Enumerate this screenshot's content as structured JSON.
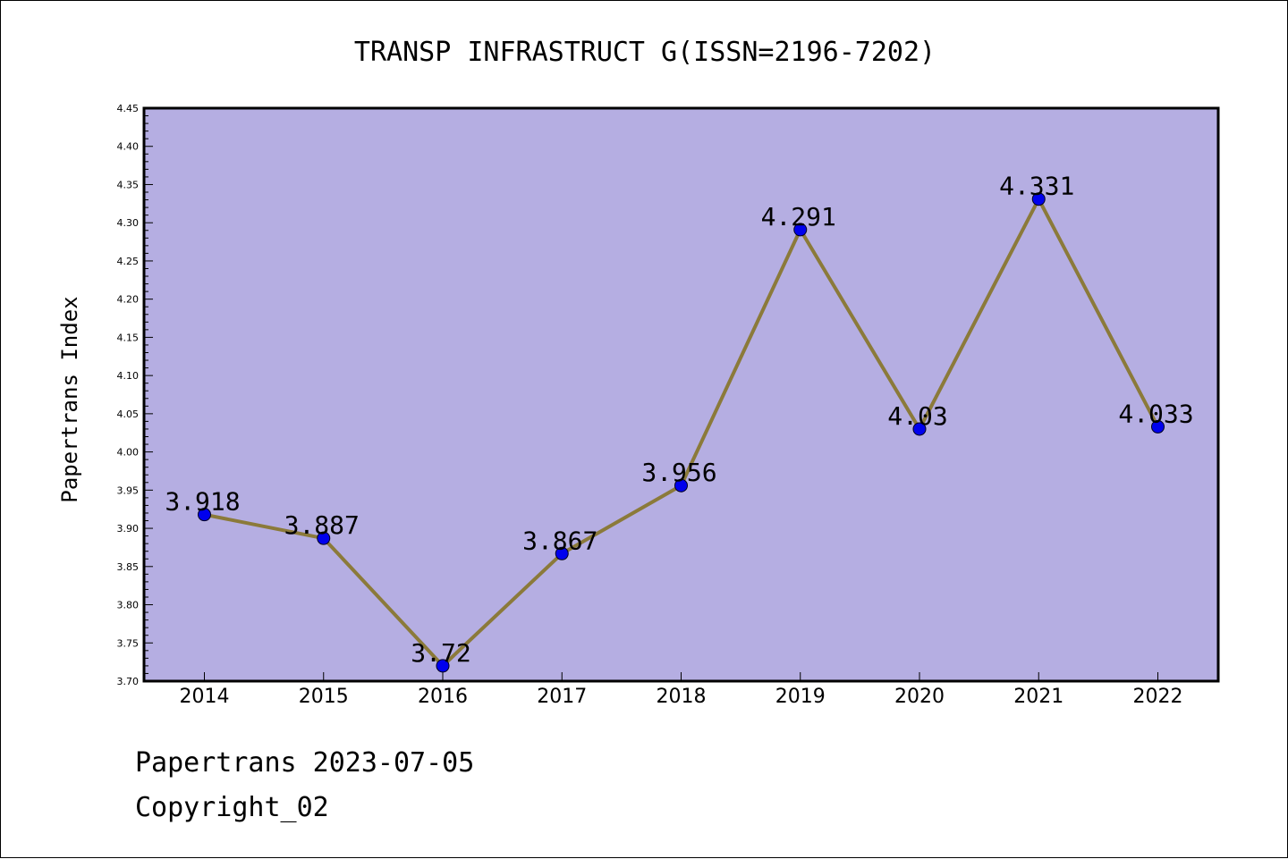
{
  "chart_data": {
    "type": "line",
    "title": "TRANSP INFRASTRUCT G(ISSN=2196-7202)",
    "xlabel": "",
    "ylabel": "Papertrans Index",
    "categories": [
      "2014",
      "2015",
      "2016",
      "2017",
      "2018",
      "2019",
      "2020",
      "2021",
      "2022"
    ],
    "values": [
      3.918,
      3.887,
      3.72,
      3.867,
      3.956,
      4.291,
      4.03,
      4.331,
      4.033
    ],
    "data_labels": [
      "3.918",
      "3.887",
      "3.72",
      "3.867",
      "3.956",
      "4.291",
      "4.03",
      "4.331",
      "4.033"
    ],
    "ylim": [
      3.7,
      4.45
    ],
    "yticks": [
      "3.70",
      "3.75",
      "3.80",
      "3.85",
      "3.90",
      "3.95",
      "4.00",
      "4.05",
      "4.10",
      "4.15",
      "4.20",
      "4.25",
      "4.30",
      "4.35",
      "4.40",
      "4.45"
    ],
    "grid": false,
    "legend": "none",
    "colors": {
      "plot_background": "#b5aee2",
      "line": "#8b7a3a",
      "marker": "#0000ee"
    }
  },
  "footer": {
    "line1": "Papertrans 2023-07-05",
    "line2": "Copyright_02"
  }
}
